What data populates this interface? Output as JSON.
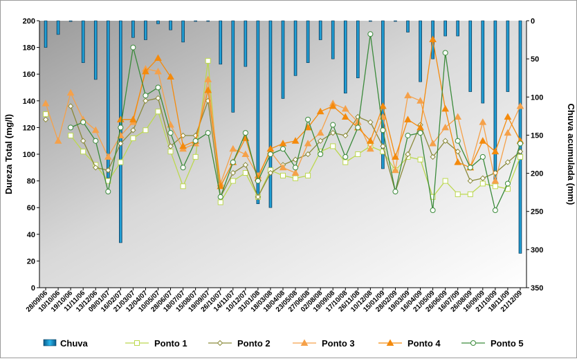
{
  "chart_data": {
    "type": "line",
    "ylabel": "Dureza Total  (mg/l)",
    "y2label": "Chuva acumulada (mm)",
    "ylim": [
      0,
      200
    ],
    "y2lim": [
      0,
      350
    ],
    "y2_inverted": true,
    "yticks": [
      "0",
      "20",
      "40",
      "60",
      "80",
      "100",
      "120",
      "140",
      "160",
      "180",
      "200"
    ],
    "y2ticks": [
      "0",
      "50",
      "100",
      "150",
      "200",
      "250",
      "300",
      "350"
    ],
    "x": [
      "28/09/06",
      "10/10/06",
      "19/10/06",
      "11/11/06",
      "13/12/06",
      "09/01/07",
      "16/02/07",
      "21/03/07",
      "12/04/07",
      "10/05/07",
      "28/06/07",
      "18/07/07",
      "15/08/07",
      "19/09/07",
      "26/10/07",
      "14/11/07",
      "10/12/07",
      "31/01/08",
      "18/03/08",
      "18/04/08",
      "23/05/08",
      "27/06/08",
      "02/08/08",
      "19/09/08",
      "17/10/08",
      "26/11/08",
      "10/12/08",
      "15/01/09",
      "28/02/09",
      "19/03/09",
      "16/04/09",
      "21/05/09",
      "26/06/09",
      "16/07/09",
      "26/08/09",
      "16/09/09",
      "21/10/09",
      "18/11/09",
      "21/12/09"
    ],
    "legend_position": "bottom",
    "grid": false,
    "background": "gradient gray",
    "bar_series": {
      "name": "Chuva",
      "color": "#1aa3d9",
      "values": [
        35,
        18,
        1,
        55,
        77,
        206,
        291,
        22,
        25,
        4,
        12,
        28,
        0,
        0,
        57,
        120,
        60,
        240,
        245,
        102,
        72,
        55,
        25,
        50,
        95,
        75,
        0,
        194,
        0,
        15,
        80,
        50,
        20,
        20,
        93,
        108,
        217,
        93,
        305
      ]
    },
    "series": [
      {
        "name": "Ponto 1",
        "color": "#bcd84f",
        "marker": "square",
        "values": [
          130,
          null,
          114,
          102,
          92,
          80,
          94,
          112,
          118,
          132,
          102,
          76,
          98,
          170,
          64,
          80,
          86,
          68,
          88,
          84,
          82,
          84,
          102,
          106,
          94,
          100,
          106,
          102,
          88,
          98,
          96,
          68,
          80,
          70,
          70,
          78,
          76,
          74,
          98
        ]
      },
      {
        "name": "Ponto 2",
        "color": "#8a8a3a",
        "marker": "diamond",
        "values": [
          126,
          null,
          136,
          110,
          90,
          88,
          108,
          118,
          140,
          142,
          106,
          114,
          114,
          140,
          68,
          86,
          92,
          68,
          86,
          92,
          96,
          100,
          110,
          116,
          114,
          128,
          124,
          106,
          72,
          100,
          122,
          98,
          110,
          102,
          80,
          82,
          86,
          94,
          102
        ]
      },
      {
        "name": "Ponto 3",
        "color": "#f5a14a",
        "marker": "triangle",
        "values": [
          138,
          110,
          146,
          126,
          118,
          98,
          114,
          124,
          164,
          162,
          122,
          104,
          108,
          156,
          78,
          104,
          100,
          84,
          102,
          90,
          86,
          108,
          116,
          138,
          134,
          124,
          104,
          128,
          88,
          144,
          140,
          108,
          120,
          128,
          90,
          124,
          80,
          116,
          136
        ]
      },
      {
        "name": "Ponto 4",
        "color": "#f48a0c",
        "marker": "triangle",
        "values": [
          null,
          null,
          null,
          null,
          null,
          null,
          126,
          126,
          162,
          172,
          158,
          106,
          110,
          148,
          76,
          94,
          112,
          82,
          104,
          108,
          110,
          120,
          132,
          136,
          128,
          120,
          110,
          136,
          98,
          126,
          120,
          186,
          134,
          94,
          90,
          110,
          102,
          128,
          110
        ]
      },
      {
        "name": "Ponto 5",
        "color": "#3a8a3a",
        "marker": "circle",
        "values": [
          null,
          null,
          120,
          124,
          110,
          72,
          120,
          180,
          144,
          150,
          116,
          90,
          110,
          116,
          68,
          94,
          116,
          80,
          100,
          104,
          90,
          126,
          100,
          122,
          98,
          120,
          190,
          118,
          72,
          114,
          116,
          58,
          176,
          110,
          90,
          98,
          58,
          78,
          108
        ]
      }
    ]
  }
}
